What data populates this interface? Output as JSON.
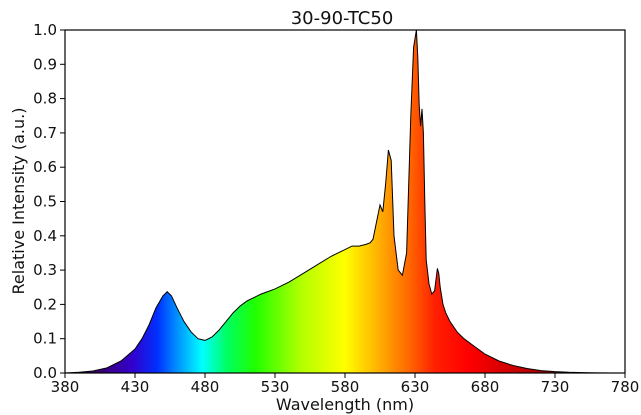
{
  "chart_data": {
    "type": "area",
    "title": "30-90-TC50",
    "xlabel": "Wavelength (nm)",
    "ylabel": "Relative Intensity (a.u.)",
    "xlim": [
      380,
      780
    ],
    "ylim": [
      0,
      1.0
    ],
    "x_ticks": [
      380,
      430,
      480,
      530,
      580,
      630,
      680,
      730,
      780
    ],
    "y_ticks": [
      0.0,
      0.1,
      0.2,
      0.3,
      0.4,
      0.5,
      0.6,
      0.7,
      0.8,
      0.9,
      1.0
    ],
    "grid": false,
    "legend": false,
    "fill": "spectral-rainbow",
    "series": [
      {
        "x": [
          380,
          390,
          400,
          410,
          420,
          430,
          435,
          440,
          445,
          450,
          453,
          456,
          460,
          465,
          470,
          475,
          480,
          485,
          490,
          495,
          500,
          505,
          510,
          520,
          530,
          540,
          550,
          560,
          570,
          580,
          585,
          590,
          595,
          598,
          600,
          603,
          605,
          607,
          609,
          611,
          613,
          615,
          618,
          621,
          624,
          627,
          629,
          631,
          632,
          633,
          634,
          635,
          636,
          637,
          638,
          640,
          642,
          644,
          646,
          647,
          648,
          650,
          652,
          655,
          660,
          665,
          670,
          675,
          680,
          690,
          700,
          710,
          720,
          730,
          740,
          750,
          760,
          770,
          780
        ],
        "y": [
          0.0,
          0.002,
          0.006,
          0.015,
          0.035,
          0.07,
          0.1,
          0.14,
          0.19,
          0.225,
          0.237,
          0.225,
          0.19,
          0.15,
          0.12,
          0.1,
          0.095,
          0.105,
          0.125,
          0.15,
          0.175,
          0.195,
          0.21,
          0.23,
          0.245,
          0.265,
          0.29,
          0.315,
          0.34,
          0.36,
          0.37,
          0.37,
          0.375,
          0.38,
          0.39,
          0.45,
          0.49,
          0.47,
          0.55,
          0.65,
          0.62,
          0.4,
          0.3,
          0.285,
          0.35,
          0.75,
          0.95,
          1.0,
          0.92,
          0.78,
          0.72,
          0.77,
          0.7,
          0.5,
          0.33,
          0.26,
          0.23,
          0.24,
          0.305,
          0.29,
          0.25,
          0.2,
          0.175,
          0.15,
          0.12,
          0.1,
          0.085,
          0.07,
          0.055,
          0.035,
          0.022,
          0.013,
          0.007,
          0.004,
          0.002,
          0.001,
          0.0005,
          0.0,
          0.0
        ]
      }
    ]
  }
}
